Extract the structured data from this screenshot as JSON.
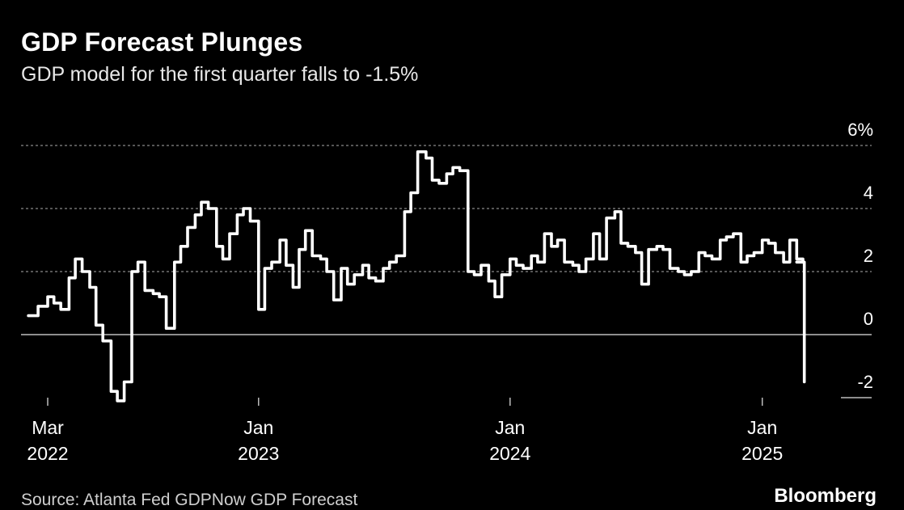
{
  "header": {
    "title": "GDP Forecast Plunges",
    "subtitle": "GDP model for the first quarter falls to -1.5%"
  },
  "footer": {
    "source": "Source: Atlanta Fed GDPNow GDP Forecast",
    "brand": "Bloomberg"
  },
  "colors": {
    "background": "#000000",
    "line": "#ffffff",
    "grid": "#8a8a8a",
    "text": "#ffffff"
  },
  "chart_data": {
    "type": "line",
    "title": "GDP Forecast Plunges",
    "subtitle": "GDP model for the first quarter falls to -1.5%",
    "xlabel": "",
    "ylabel": "",
    "ylim": [
      -2,
      6
    ],
    "y_ticks": [
      {
        "value": 6,
        "label": "6%"
      },
      {
        "value": 4,
        "label": "4"
      },
      {
        "value": 2,
        "label": "2"
      },
      {
        "value": 0,
        "label": "0"
      },
      {
        "value": -2,
        "label": "-2"
      }
    ],
    "x_ticks": [
      {
        "date": "2022-03-01",
        "label": [
          "Mar",
          "2022"
        ]
      },
      {
        "date": "2023-01-01",
        "label": [
          "Jan",
          "2023"
        ]
      },
      {
        "date": "2024-01-01",
        "label": [
          "Jan",
          "2024"
        ]
      },
      {
        "date": "2025-01-01",
        "label": [
          "Jan",
          "2025"
        ]
      }
    ],
    "grid": true,
    "legend": "none",
    "series": [
      {
        "x": [
          "2022-02-01",
          "2022-02-15",
          "2022-03-01",
          "2022-03-10",
          "2022-03-20",
          "2022-04-01",
          "2022-04-10",
          "2022-04-20",
          "2022-05-01",
          "2022-05-10",
          "2022-05-20",
          "2022-06-01",
          "2022-06-10",
          "2022-06-20",
          "2022-07-01",
          "2022-07-10",
          "2022-07-20",
          "2022-08-01",
          "2022-08-10",
          "2022-08-20",
          "2022-09-01",
          "2022-09-10",
          "2022-09-20",
          "2022-10-01",
          "2022-10-10",
          "2022-10-20",
          "2022-11-01",
          "2022-11-10",
          "2022-11-20",
          "2022-12-01",
          "2022-12-10",
          "2022-12-20",
          "2023-01-01",
          "2023-01-10",
          "2023-01-20",
          "2023-02-01",
          "2023-02-10",
          "2023-02-20",
          "2023-03-01",
          "2023-03-10",
          "2023-03-20",
          "2023-04-01",
          "2023-04-10",
          "2023-04-20",
          "2023-05-01",
          "2023-05-10",
          "2023-05-20",
          "2023-06-01",
          "2023-06-10",
          "2023-06-20",
          "2023-07-01",
          "2023-07-10",
          "2023-07-20",
          "2023-08-01",
          "2023-08-10",
          "2023-08-20",
          "2023-09-01",
          "2023-09-10",
          "2023-09-20",
          "2023-10-01",
          "2023-10-10",
          "2023-10-20",
          "2023-11-01",
          "2023-11-10",
          "2023-11-20",
          "2023-12-01",
          "2023-12-10",
          "2023-12-20",
          "2024-01-01",
          "2024-01-10",
          "2024-01-20",
          "2024-02-01",
          "2024-02-10",
          "2024-02-20",
          "2024-03-01",
          "2024-03-10",
          "2024-03-20",
          "2024-04-01",
          "2024-04-10",
          "2024-04-20",
          "2024-05-01",
          "2024-05-10",
          "2024-05-20",
          "2024-06-01",
          "2024-06-10",
          "2024-06-20",
          "2024-07-01",
          "2024-07-10",
          "2024-07-20",
          "2024-08-01",
          "2024-08-10",
          "2024-08-20",
          "2024-09-01",
          "2024-09-10",
          "2024-09-20",
          "2024-10-01",
          "2024-10-10",
          "2024-10-20",
          "2024-11-01",
          "2024-11-10",
          "2024-11-20",
          "2024-12-01",
          "2024-12-10",
          "2024-12-20",
          "2025-01-01",
          "2025-01-10",
          "2025-01-20",
          "2025-02-01",
          "2025-02-10",
          "2025-02-20",
          "2025-03-01"
        ],
        "y": [
          0.6,
          0.9,
          1.2,
          1.0,
          0.8,
          1.8,
          2.4,
          2.0,
          1.5,
          0.3,
          -0.2,
          -1.8,
          -2.1,
          -1.5,
          2.0,
          2.3,
          1.4,
          1.3,
          1.2,
          0.2,
          2.3,
          2.8,
          3.4,
          3.8,
          4.2,
          4.0,
          2.8,
          2.4,
          3.2,
          3.8,
          4.0,
          3.6,
          0.8,
          2.1,
          2.3,
          3.0,
          2.2,
          1.5,
          2.7,
          3.3,
          2.5,
          2.4,
          2.0,
          1.1,
          2.1,
          1.6,
          1.9,
          2.2,
          1.8,
          1.7,
          2.1,
          2.3,
          2.5,
          3.9,
          4.5,
          5.8,
          5.6,
          4.9,
          4.8,
          5.1,
          5.3,
          5.2,
          2.0,
          1.9,
          2.2,
          1.7,
          1.2,
          1.9,
          2.4,
          2.2,
          2.1,
          2.5,
          2.3,
          3.2,
          2.8,
          3.0,
          2.3,
          2.2,
          2.0,
          2.4,
          3.2,
          2.4,
          3.7,
          3.9,
          2.9,
          2.8,
          2.6,
          1.6,
          2.7,
          2.8,
          2.7,
          2.1,
          2.0,
          1.9,
          2.0,
          2.6,
          2.5,
          2.4,
          3.0,
          3.1,
          3.2,
          2.3,
          2.5,
          2.6,
          3.0,
          2.9,
          2.6,
          2.3,
          3.0,
          2.4,
          2.3
        ]
      },
      {
        "x": [
          "2025-02-20",
          "2025-03-03"
        ],
        "y": [
          2.3,
          -1.5
        ]
      }
    ]
  }
}
